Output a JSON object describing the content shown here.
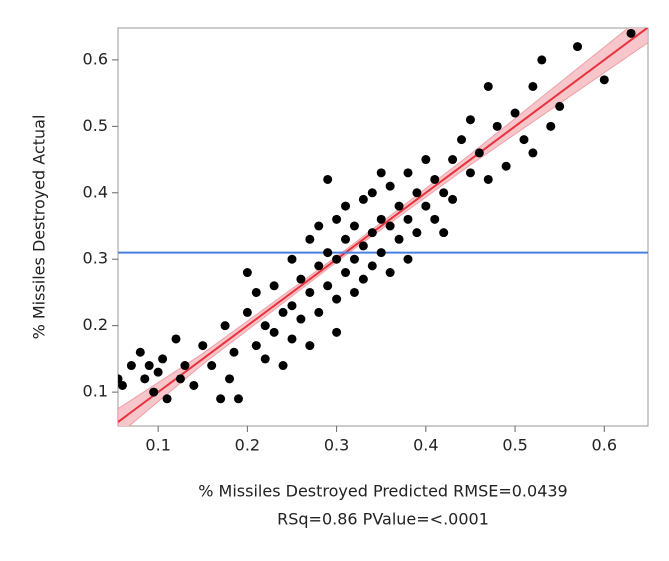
{
  "chart_data": {
    "type": "scatter",
    "ylabel": "% Missiles Destroyed Actual",
    "xlabel": [
      "% Missiles Destroyed Predicted RMSE=0.0439",
      "RSq=0.86 PValue=<.0001"
    ],
    "xlim": [
      0.055,
      0.649
    ],
    "ylim": [
      0.049,
      0.648
    ],
    "xticks": [
      0.1,
      0.2,
      0.3,
      0.4,
      0.5,
      0.6
    ],
    "yticks": [
      0.1,
      0.2,
      0.3,
      0.4,
      0.5,
      0.6
    ],
    "color": "#000000",
    "x": [
      0.055,
      0.06,
      0.07,
      0.08,
      0.085,
      0.09,
      0.095,
      0.1,
      0.105,
      0.11,
      0.12,
      0.125,
      0.13,
      0.14,
      0.15,
      0.16,
      0.17,
      0.175,
      0.18,
      0.185,
      0.19,
      0.2,
      0.2,
      0.21,
      0.21,
      0.22,
      0.22,
      0.23,
      0.23,
      0.24,
      0.24,
      0.25,
      0.25,
      0.25,
      0.26,
      0.26,
      0.27,
      0.27,
      0.27,
      0.28,
      0.28,
      0.28,
      0.29,
      0.29,
      0.29,
      0.3,
      0.3,
      0.3,
      0.3,
      0.31,
      0.31,
      0.31,
      0.32,
      0.32,
      0.32,
      0.33,
      0.33,
      0.33,
      0.34,
      0.34,
      0.34,
      0.35,
      0.35,
      0.35,
      0.36,
      0.36,
      0.36,
      0.37,
      0.37,
      0.38,
      0.38,
      0.38,
      0.39,
      0.39,
      0.4,
      0.4,
      0.41,
      0.41,
      0.42,
      0.42,
      0.43,
      0.43,
      0.44,
      0.45,
      0.45,
      0.46,
      0.47,
      0.47,
      0.48,
      0.49,
      0.5,
      0.51,
      0.52,
      0.52,
      0.53,
      0.54,
      0.55,
      0.57,
      0.6,
      0.63
    ],
    "y": [
      0.12,
      0.11,
      0.14,
      0.16,
      0.12,
      0.14,
      0.1,
      0.13,
      0.15,
      0.09,
      0.18,
      0.12,
      0.14,
      0.11,
      0.17,
      0.14,
      0.09,
      0.2,
      0.12,
      0.16,
      0.09,
      0.28,
      0.22,
      0.17,
      0.25,
      0.2,
      0.15,
      0.26,
      0.19,
      0.22,
      0.14,
      0.3,
      0.23,
      0.18,
      0.27,
      0.21,
      0.33,
      0.25,
      0.17,
      0.29,
      0.22,
      0.35,
      0.31,
      0.26,
      0.42,
      0.3,
      0.24,
      0.36,
      0.19,
      0.33,
      0.28,
      0.38,
      0.3,
      0.35,
      0.25,
      0.32,
      0.39,
      0.27,
      0.34,
      0.4,
      0.29,
      0.36,
      0.43,
      0.31,
      0.35,
      0.41,
      0.28,
      0.38,
      0.33,
      0.43,
      0.36,
      0.3,
      0.4,
      0.34,
      0.38,
      0.45,
      0.36,
      0.42,
      0.4,
      0.34,
      0.45,
      0.39,
      0.48,
      0.43,
      0.51,
      0.46,
      0.56,
      0.42,
      0.5,
      0.44,
      0.52,
      0.48,
      0.56,
      0.46,
      0.6,
      0.5,
      0.53,
      0.62,
      0.57,
      0.64
    ],
    "fit_line": {
      "slope": 1,
      "intercept": 0,
      "color": "#e8323c"
    },
    "band": {
      "color": "#f7c6cb",
      "x": [
        0.055,
        0.15,
        0.31,
        0.45,
        0.649
      ],
      "upper": [
        0.075,
        0.158,
        0.314,
        0.458,
        0.672
      ],
      "lower": [
        0.035,
        0.142,
        0.306,
        0.442,
        0.626
      ]
    },
    "mean_line": {
      "value": 0.31,
      "color": "#4a7fe0"
    }
  }
}
